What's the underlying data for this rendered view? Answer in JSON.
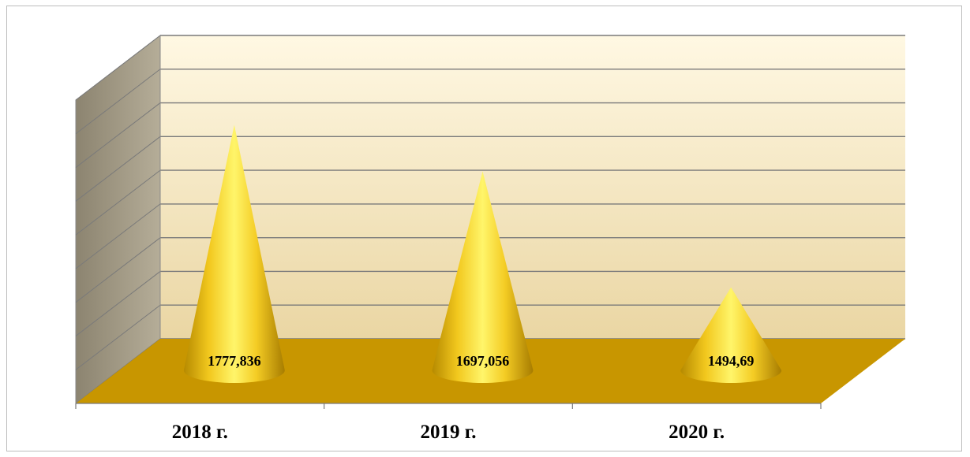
{
  "chart_data": {
    "type": "bar",
    "shape": "cone",
    "three_d": true,
    "categories": [
      "2018 г.",
      "2019 г.",
      "2020 г."
    ],
    "values": [
      1777.836,
      1697.056,
      1494.69
    ],
    "data_labels": [
      "1777,836",
      "1697,056",
      "1494,69"
    ],
    "title": "",
    "xlabel": "",
    "ylabel": "",
    "ylim": [
      1350,
      1850
    ],
    "grid": true,
    "legend": "none",
    "colors": {
      "cone_light": "#fff56a",
      "cone_mid": "#f2c81e",
      "cone_dark": "#b68a00",
      "floor": "#c89600",
      "back_wall_top": "#fff7e0",
      "back_wall_bottom": "#ecd9a8",
      "side_wall": "#9c9481",
      "grid": "#7a7a7a"
    }
  }
}
